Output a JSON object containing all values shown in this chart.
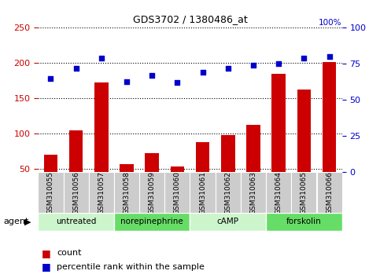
{
  "title": "GDS3702 / 1380486_at",
  "samples": [
    "GSM310055",
    "GSM310056",
    "GSM310057",
    "GSM310058",
    "GSM310059",
    "GSM310060",
    "GSM310061",
    "GSM310062",
    "GSM310063",
    "GSM310064",
    "GSM310065",
    "GSM310066"
  ],
  "count_values": [
    70,
    105,
    172,
    57,
    72,
    53,
    88,
    98,
    112,
    185,
    162,
    202
  ],
  "percentile_values": [
    65,
    72,
    79,
    63,
    67,
    62,
    69,
    72,
    74,
    75,
    79,
    80
  ],
  "agents": [
    {
      "label": "untreated",
      "start": 0,
      "end": 3
    },
    {
      "label": "norepinephrine",
      "start": 3,
      "end": 6
    },
    {
      "label": "cAMP",
      "start": 6,
      "end": 9
    },
    {
      "label": "forskolin",
      "start": 9,
      "end": 12
    }
  ],
  "agent_colors": [
    "#d5f5d5",
    "#7de87d",
    "#7de87d",
    "#7de87d"
  ],
  "ylim_left": [
    45,
    250
  ],
  "ylim_right": [
    0,
    100
  ],
  "yticks_left": [
    50,
    100,
    150,
    200,
    250
  ],
  "yticks_right": [
    0,
    25,
    50,
    75,
    100
  ],
  "bar_color": "#cc0000",
  "dot_color": "#0000cc",
  "bg_color": "#ffffff",
  "grid_color": "#000000",
  "left_axis_color": "#cc0000",
  "right_axis_color": "#0000cc",
  "sample_bg": "#cccccc",
  "agent_label_text": "agent"
}
